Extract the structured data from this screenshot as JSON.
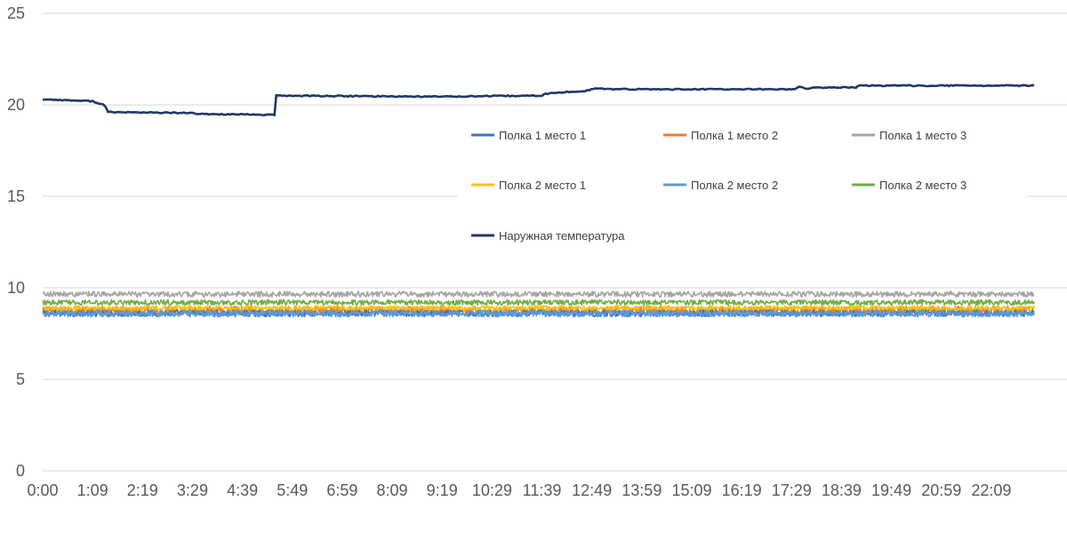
{
  "chart_data": {
    "type": "line",
    "title": "",
    "xlabel": "",
    "ylabel": "",
    "ylim": [
      0,
      25
    ],
    "yticks": [
      0,
      5,
      10,
      15,
      20,
      25
    ],
    "grid": "horizontal",
    "legend_placement": "inside-right",
    "x_tick_labels": [
      "0:00",
      "1:09",
      "2:19",
      "3:29",
      "4:39",
      "5:49",
      "6:59",
      "8:09",
      "9:19",
      "10:29",
      "11:39",
      "12:49",
      "13:59",
      "15:09",
      "16:19",
      "17:29",
      "18:39",
      "19:49",
      "20:59",
      "22:09"
    ],
    "x_unit_minutes_per_tick": 70,
    "x_range_minutes": [
      0,
      1390
    ],
    "series": [
      {
        "name": "Полка 1 место 1",
        "color": "#4472c4",
        "mean": 8.6,
        "noise": 0.18,
        "points": []
      },
      {
        "name": "Полка 1 место 2",
        "color": "#ed7d31",
        "mean": 8.75,
        "noise": 0.25,
        "points": []
      },
      {
        "name": "Полка 1 место 3",
        "color": "#a5a5a5",
        "mean": 9.65,
        "noise": 0.15,
        "points": []
      },
      {
        "name": "Полка 2  место 1",
        "color": "#ffc000",
        "mean": 8.9,
        "noise": 0.12,
        "points": []
      },
      {
        "name": "Полка 2 место 2",
        "color": "#5b9bd5",
        "mean": 8.6,
        "noise": 0.18,
        "points": []
      },
      {
        "name": "Полка 2 место 3",
        "color": "#70ad47",
        "mean": 9.2,
        "noise": 0.14,
        "points": []
      },
      {
        "name": "Наружная температура",
        "color": "#203864",
        "points": [
          [
            0,
            20.3
          ],
          [
            70,
            20.2
          ],
          [
            85,
            20.0
          ],
          [
            95,
            19.6
          ],
          [
            210,
            19.55
          ],
          [
            215,
            19.5
          ],
          [
            325,
            19.45
          ],
          [
            330,
            20.5
          ],
          [
            545,
            20.45
          ],
          [
            700,
            20.5
          ],
          [
            705,
            20.6
          ],
          [
            735,
            20.7
          ],
          [
            760,
            20.75
          ],
          [
            775,
            20.9
          ],
          [
            800,
            20.85
          ],
          [
            1055,
            20.85
          ],
          [
            1060,
            21.0
          ],
          [
            1070,
            20.9
          ],
          [
            1100,
            20.95
          ],
          [
            1140,
            20.95
          ],
          [
            1145,
            21.05
          ],
          [
            1390,
            21.05
          ]
        ]
      }
    ]
  }
}
